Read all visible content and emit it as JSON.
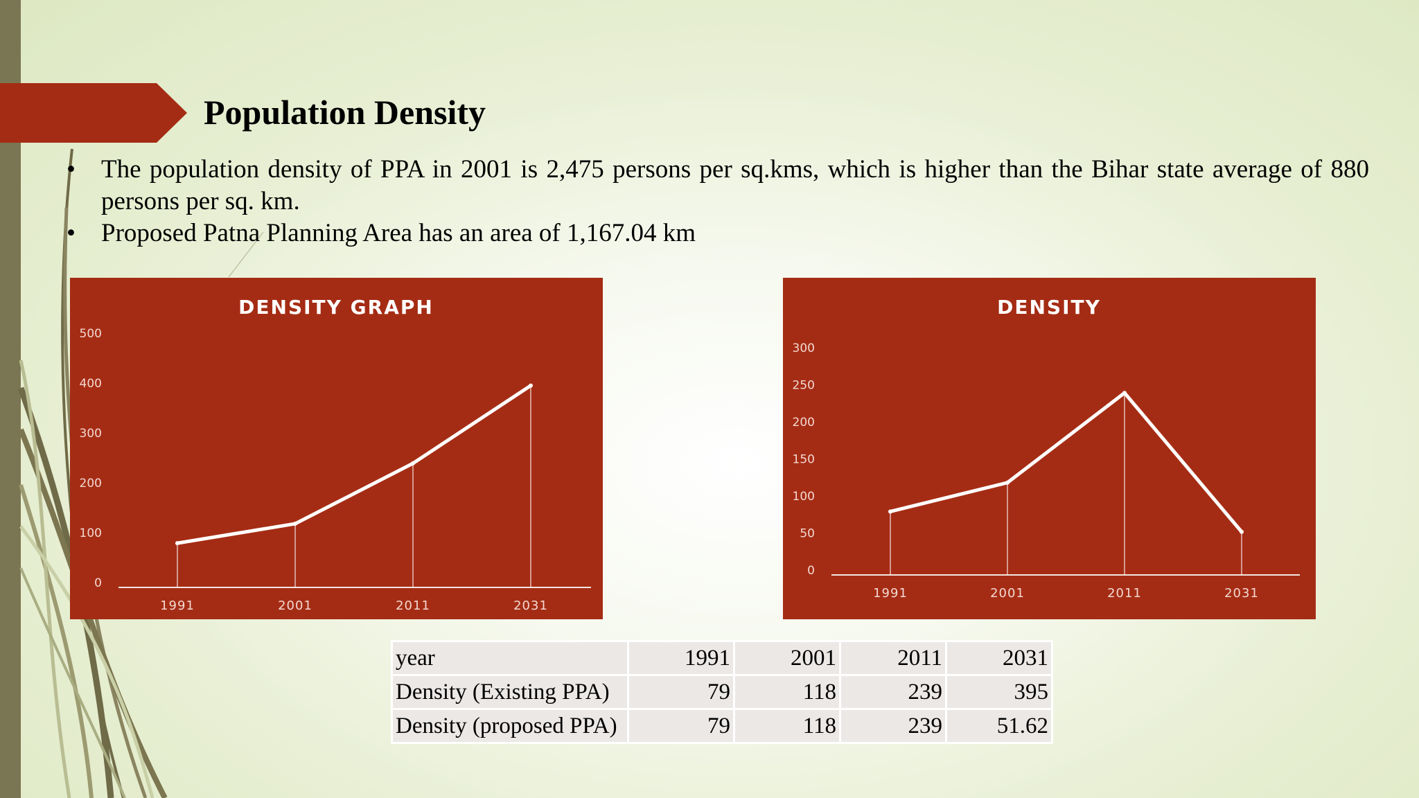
{
  "slide": {
    "title": "Population Density",
    "bullets": [
      "The population density of PPA in 2001 is 2,475 persons per sq.kms, which is higher than the Bihar state average of 880 persons per sq. km.",
      "Proposed Patna Planning Area has an area of 1,167.04 km"
    ],
    "bullet_symbol": "•"
  },
  "colors": {
    "panel": "#a52c14",
    "banner": "#a52c14",
    "line": "#ffffff",
    "tick_text": "#f2d9d2"
  },
  "chart_data": [
    {
      "type": "line",
      "title": "DENSITY GRAPH",
      "categories": [
        "1991",
        "2001",
        "2011",
        "2031"
      ],
      "series": [
        {
          "name": "Density (Existing PPA)",
          "values": [
            79,
            118,
            239,
            395
          ]
        }
      ],
      "ylim": [
        0,
        500
      ],
      "yticks": [
        0,
        100,
        200,
        300,
        400,
        500
      ],
      "xlabel": "",
      "ylabel": "",
      "grid": false,
      "drop_lines": true
    },
    {
      "type": "line",
      "title": "DENSITY",
      "categories": [
        "1991",
        "2001",
        "2011",
        "2031"
      ],
      "series": [
        {
          "name": "Density (proposed PPA)",
          "values": [
            79,
            118,
            239,
            51.62
          ]
        }
      ],
      "ylim": [
        0,
        300
      ],
      "yticks": [
        0,
        50,
        100,
        150,
        200,
        250,
        300
      ],
      "xlabel": "",
      "ylabel": "",
      "grid": false,
      "drop_lines": true
    }
  ],
  "table": {
    "header": [
      "year",
      "1991",
      "2001",
      "2011",
      "2031"
    ],
    "rows": [
      [
        "Density (Existing PPA)",
        "79",
        "118",
        "239",
        "395"
      ],
      [
        "Density (proposed PPA)",
        "79",
        "118",
        "239",
        "51.62"
      ]
    ]
  }
}
